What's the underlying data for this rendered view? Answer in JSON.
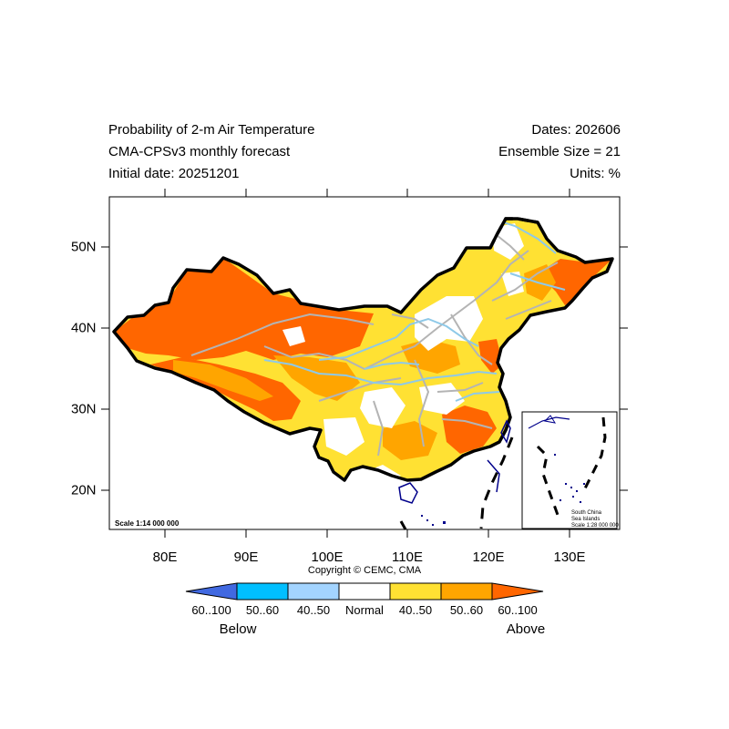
{
  "header": {
    "title_line1": "Probability of 2-m Air Temperature",
    "title_line2": "CMA-CPSv3 monthly forecast",
    "title_line3": "Initial date: 20251201",
    "right_line1": "Dates: 202606",
    "right_line2": "Ensemble Size = 21",
    "right_line3": "Units: %"
  },
  "axes": {
    "x_ticks": [
      "80E",
      "90E",
      "100E",
      "110E",
      "120E",
      "130E"
    ],
    "y_ticks": [
      "50N",
      "40N",
      "30N",
      "20N"
    ]
  },
  "map": {
    "scale_label": "Scale 1:14 000 000",
    "inset_label_line1": "South China",
    "inset_label_line2": "Sea Islands",
    "inset_scale": "Scale 1:28 000 000"
  },
  "copyright": "Copyright © CEMC, CMA",
  "colorbar": {
    "labels": [
      "60..100",
      "50..60",
      "40..50",
      "Normal",
      "40..50",
      "50..60",
      "60..100"
    ],
    "colors": [
      "#4169e1",
      "#00bfff",
      "#a3d4ff",
      "#ffffff",
      "#ffe133",
      "#ffa500",
      "#ff6600"
    ],
    "below_label": "Below",
    "above_label": "Above"
  },
  "colors": {
    "river": "#8ec9e8",
    "province": "#b4b4b4",
    "border": "#000000",
    "coast": "#00008b"
  }
}
